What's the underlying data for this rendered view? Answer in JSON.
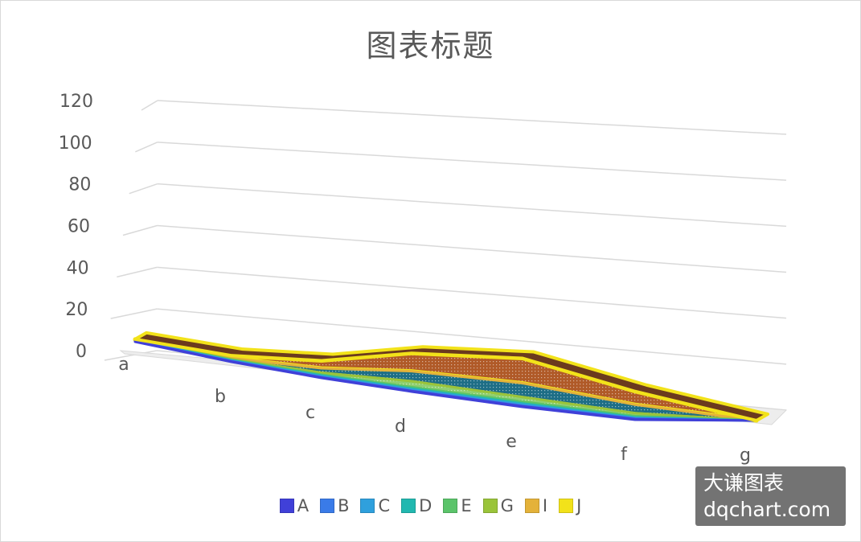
{
  "chart_data": {
    "type": "area",
    "title": "图表标题",
    "stacked": true,
    "three_d": true,
    "categories": [
      "a",
      "b",
      "c",
      "d",
      "e",
      "f",
      "g"
    ],
    "ylim": [
      0,
      120
    ],
    "yticks": [
      "0",
      "20",
      "40",
      "60",
      "80",
      "100",
      "120"
    ],
    "grid": true,
    "legend_position": "bottom",
    "series": [
      {
        "name": "A",
        "values": [
          1,
          1,
          1,
          1,
          1,
          1,
          0
        ]
      },
      {
        "name": "B",
        "values": [
          1,
          1,
          1,
          1,
          1,
          1,
          0
        ]
      },
      {
        "name": "C",
        "values": [
          1,
          1,
          2,
          2,
          2,
          1,
          0
        ]
      },
      {
        "name": "D",
        "values": [
          1,
          1,
          2,
          2,
          2,
          1,
          0
        ]
      },
      {
        "name": "E",
        "values": [
          1,
          1,
          2,
          3,
          3,
          2,
          0
        ]
      },
      {
        "name": "G",
        "values": [
          1,
          2,
          5,
          12,
          8,
          5,
          0
        ]
      },
      {
        "name": "I",
        "values": [
          1,
          3,
          11,
          20,
          24,
          14,
          0
        ]
      },
      {
        "name": "J",
        "values": [
          1,
          7,
          19,
          36,
          43,
          22,
          0
        ]
      }
    ],
    "colors": [
      "#4040d8",
      "#3a7be8",
      "#2fa0dd",
      "#21b8b0",
      "#5bc46a",
      "#9ac43a",
      "#e4b23a",
      "#f2e21a"
    ],
    "band_fills": [
      "#2a4fd6",
      "#3a7be8",
      "#25a8c8",
      "#1fbfae",
      "#c060c0",
      "#8fcf70",
      "#1e6e86",
      "#b05a28"
    ]
  },
  "legend": {
    "items": [
      "A",
      "B",
      "C",
      "D",
      "E",
      "G",
      "I",
      "J"
    ]
  },
  "watermark": {
    "line1": "大谦图表",
    "line2": "dqchart.com"
  }
}
